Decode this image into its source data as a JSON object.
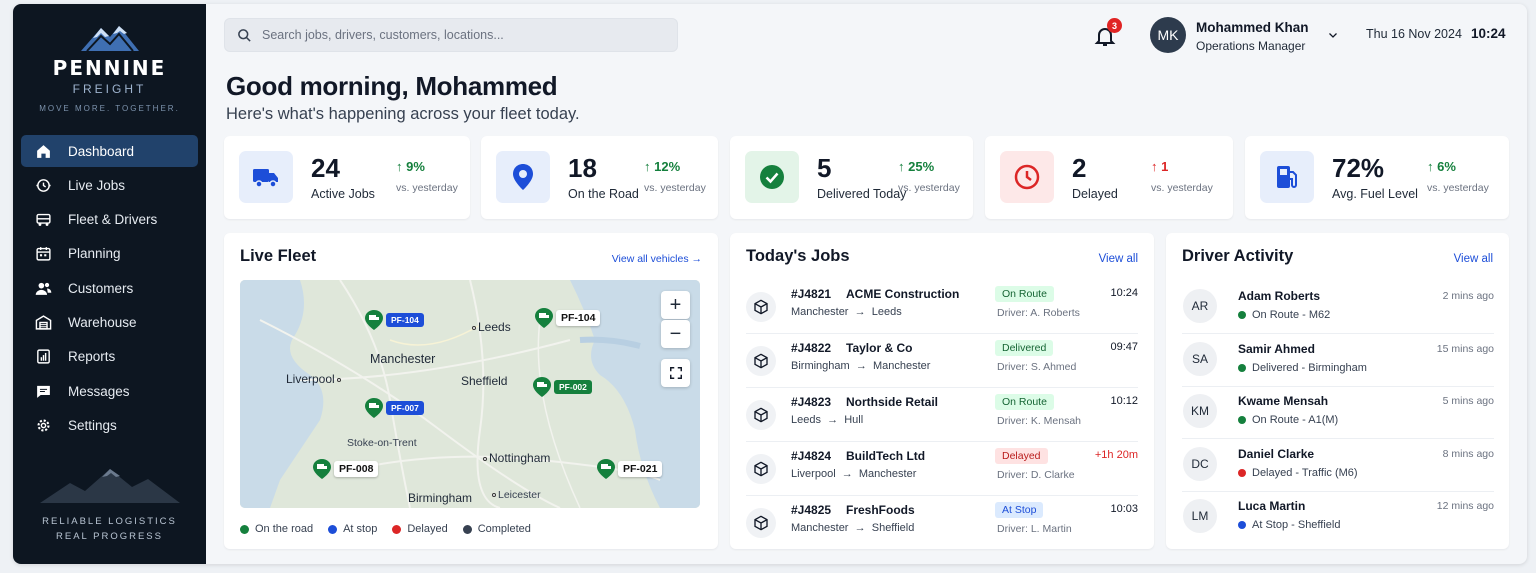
{
  "brand": {
    "name": "PENNINE",
    "sub": "FREIGHT",
    "tagline": "MOVE MORE. TOGETHER.",
    "footer_line1": "RELIABLE LOGISTICS",
    "footer_line2": "REAL PROGRESS"
  },
  "nav": [
    {
      "label": "Dashboard",
      "icon": "home-icon",
      "active": true
    },
    {
      "label": "Live Jobs",
      "icon": "live-jobs-icon"
    },
    {
      "label": "Fleet & Drivers",
      "icon": "truck-icon"
    },
    {
      "label": "Planning",
      "icon": "calendar-icon"
    },
    {
      "label": "Customers",
      "icon": "users-icon"
    },
    {
      "label": "Warehouse",
      "icon": "warehouse-icon"
    },
    {
      "label": "Reports",
      "icon": "reports-icon"
    },
    {
      "label": "Messages",
      "icon": "message-icon"
    },
    {
      "label": "Settings",
      "icon": "gear-icon"
    }
  ],
  "search": {
    "placeholder": "Search jobs, drivers, customers, locations..."
  },
  "notifications": {
    "count": "3"
  },
  "user": {
    "initials": "MK",
    "name": "Mohammed Khan",
    "role": "Operations Manager"
  },
  "datetime": {
    "date": "Thu 16 Nov 2024",
    "time": "10:24"
  },
  "greeting": {
    "title": "Good morning, Mohammed",
    "subtitle": "Here's what's happening across your fleet today."
  },
  "kpis": [
    {
      "value": "24",
      "label": "Active Jobs",
      "delta": "9%",
      "direction": "up",
      "vs": "vs. yesterday",
      "icon": "truck-icon",
      "color": "#1d4ed8",
      "bg": "#e7eefb"
    },
    {
      "value": "18",
      "label": "On the Road",
      "delta": "12%",
      "direction": "up",
      "vs": "vs. yesterday",
      "icon": "location-pin-icon",
      "color": "#1d4ed8",
      "bg": "#e7eefb"
    },
    {
      "value": "5",
      "label": "Delivered Today",
      "delta": "25%",
      "direction": "up",
      "vs": "vs. yesterday",
      "icon": "check-circle-icon",
      "color": "#15803d",
      "bg": "#e3f4e8"
    },
    {
      "value": "2",
      "label": "Delayed",
      "delta": "1",
      "direction": "up-bad",
      "vs": "vs. yesterday",
      "icon": "clock-icon",
      "color": "#dc2626",
      "bg": "#fde8e8"
    },
    {
      "value": "72%",
      "label": "Avg. Fuel Level",
      "delta": "6%",
      "direction": "up",
      "vs": "vs. yesterday",
      "icon": "fuel-icon",
      "color": "#1d4ed8",
      "bg": "#e7eefb"
    }
  ],
  "live_fleet": {
    "title": "Live Fleet",
    "link": "View all vehicles →",
    "cities": [
      "Leeds",
      "Manchester",
      "Liverpool",
      "Sheffield",
      "Stoke-on-Trent",
      "Nottingham",
      "Birmingham",
      "Leicester"
    ],
    "vehicles": [
      {
        "id": "PF-104",
        "style": "blue"
      },
      {
        "id": "PF-104",
        "style": "white"
      },
      {
        "id": "PF-002",
        "style": "green"
      },
      {
        "id": "PF-007",
        "style": "blue"
      },
      {
        "id": "PF-008",
        "style": "white"
      },
      {
        "id": "PF-021",
        "style": "white"
      }
    ],
    "legend": [
      {
        "label": "On the road",
        "color": "#15803d"
      },
      {
        "label": "At stop",
        "color": "#1d4ed8"
      },
      {
        "label": "Delayed",
        "color": "#dc2626"
      },
      {
        "label": "Completed",
        "color": "#374151"
      }
    ]
  },
  "jobs": {
    "title": "Today's Jobs",
    "link": "View all",
    "items": [
      {
        "id": "#J4821",
        "customer": "ACME Construction",
        "from": "Manchester",
        "to": "Leeds",
        "status": "On Route",
        "status_class": "st-route",
        "driver": "Driver: A. Roberts",
        "time": "10:24"
      },
      {
        "id": "#J4822",
        "customer": "Taylor & Co",
        "from": "Birmingham",
        "to": "Manchester",
        "status": "Delivered",
        "status_class": "st-deliv",
        "driver": "Driver: S. Ahmed",
        "time": "09:47"
      },
      {
        "id": "#J4823",
        "customer": "Northside Retail",
        "from": "Leeds",
        "to": "Hull",
        "status": "On Route",
        "status_class": "st-route",
        "driver": "Driver: K. Mensah",
        "time": "10:12"
      },
      {
        "id": "#J4824",
        "customer": "BuildTech Ltd",
        "from": "Liverpool",
        "to": "Manchester",
        "status": "Delayed",
        "status_class": "st-delay",
        "driver": "Driver: D. Clarke",
        "time": "+1h 20m"
      },
      {
        "id": "#J4825",
        "customer": "FreshFoods",
        "from": "Manchester",
        "to": "Sheffield",
        "status": "At Stop",
        "status_class": "st-stop",
        "driver": "Driver: L. Martin",
        "time": "10:03"
      }
    ]
  },
  "drivers": {
    "title": "Driver Activity",
    "link": "View all",
    "items": [
      {
        "initials": "AR",
        "name": "Adam Roberts",
        "status": "On Route - M62",
        "color": "#15803d",
        "ago": "2 mins ago"
      },
      {
        "initials": "SA",
        "name": "Samir Ahmed",
        "status": "Delivered - Birmingham",
        "color": "#15803d",
        "ago": "15 mins ago"
      },
      {
        "initials": "KM",
        "name": "Kwame Mensah",
        "status": "On Route - A1(M)",
        "color": "#15803d",
        "ago": "5 mins ago"
      },
      {
        "initials": "DC",
        "name": "Daniel Clarke",
        "status": "Delayed - Traffic (M6)",
        "color": "#dc2626",
        "ago": "8 mins ago"
      },
      {
        "initials": "LM",
        "name": "Luca Martin",
        "status": "At Stop - Sheffield",
        "color": "#1d4ed8",
        "ago": "12 mins ago"
      }
    ]
  }
}
